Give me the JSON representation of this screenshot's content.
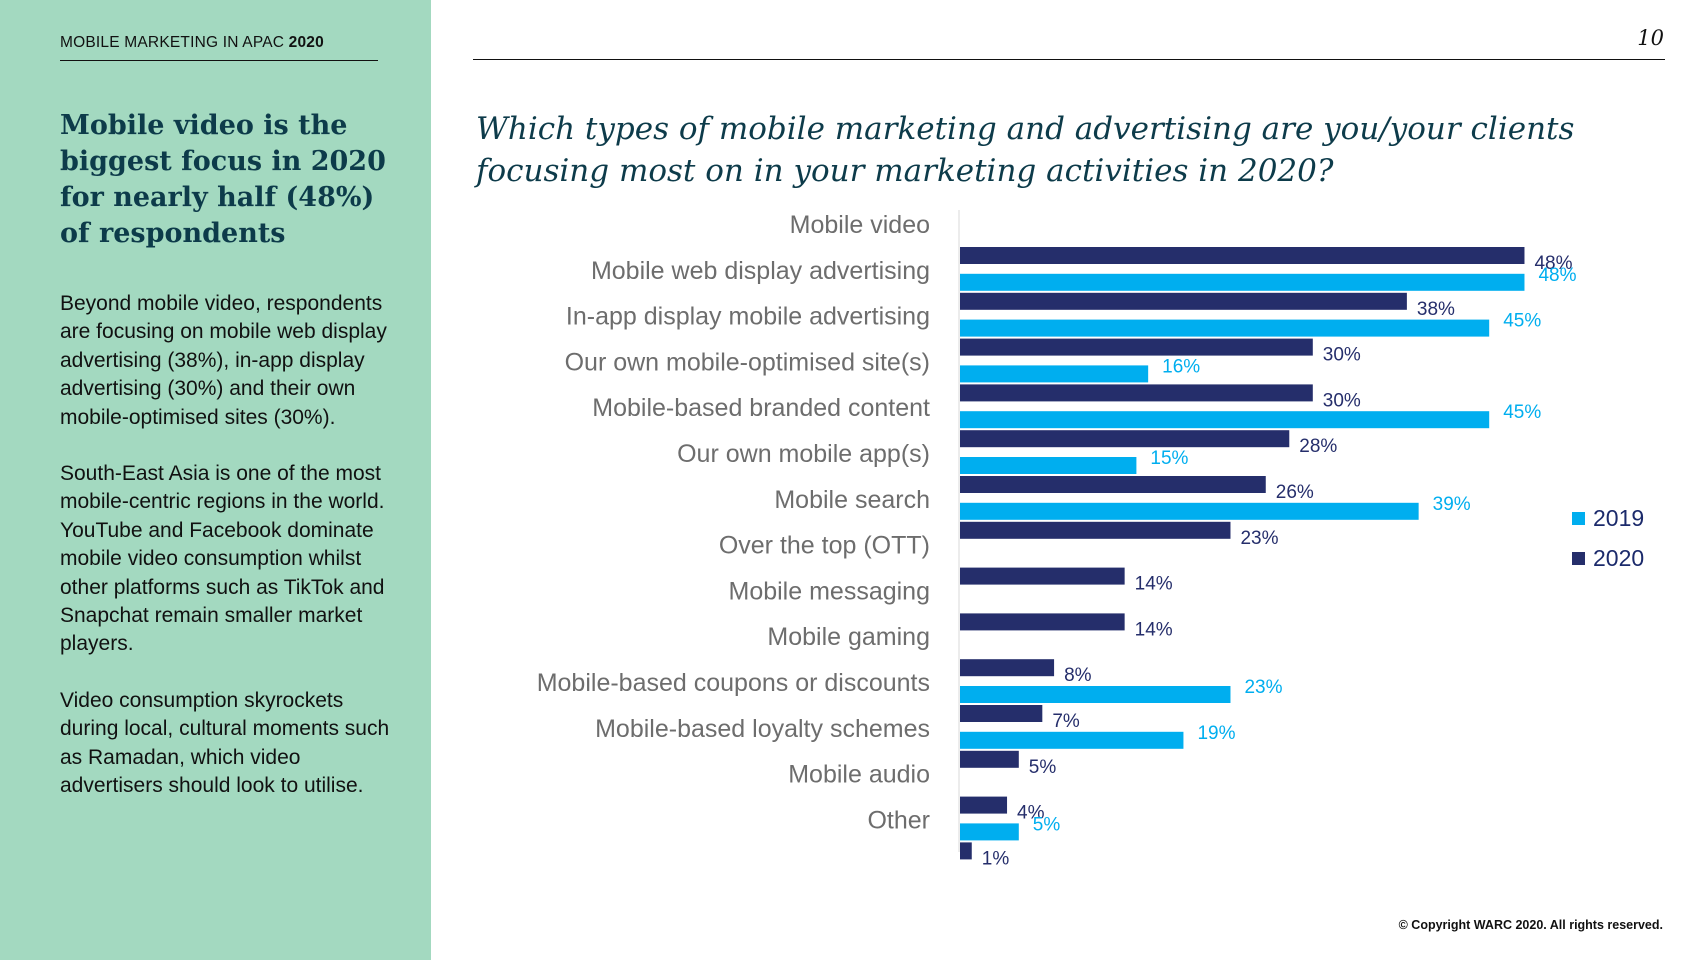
{
  "header": {
    "doc_title": "MOBILE MARKETING IN APAC",
    "doc_year": "2020",
    "page_number": "10"
  },
  "sidebar": {
    "heading": "Mobile video is the biggest focus in 2020 for nearly half (48%) of respondents",
    "paragraphs": [
      "Beyond mobile video, respondents are focusing on mobile web display advertising (38%), in-app display advertising (30%) and their own mobile-optimised sites (30%).",
      "South-East Asia is one of the most mobile-centric regions in the world. YouTube and Facebook dominate mobile video consumption whilst other platforms such as TikTok and Snapchat remain smaller market players.",
      "Video consumption skyrockets during local, cultural moments such as Ramadan, which video advertisers should look to utilise."
    ]
  },
  "footer": {
    "copyright": "© Copyright WARC 2020. All rights reserved."
  },
  "colors": {
    "sidebar_bg": "#a3d9c0",
    "heading": "#0d3b4a",
    "series_2019": "#00aeef",
    "series_2020": "#252e6b"
  },
  "chart_data": {
    "type": "bar",
    "orientation": "horizontal",
    "title": "Which types of mobile marketing and advertising are you/your clients focusing most on in your marketing activities in 2020?",
    "categories": [
      "Mobile video",
      "Mobile web display advertising",
      "In-app display mobile advertising",
      "Our own mobile-optimised site(s)",
      "Mobile-based branded content",
      "Our own mobile app(s)",
      "Mobile search",
      "Over the top (OTT)",
      "Mobile messaging",
      "Mobile gaming",
      "Mobile-based coupons or discounts",
      "Mobile-based loyalty schemes",
      "Mobile audio",
      "Other"
    ],
    "series": [
      {
        "name": "2019",
        "color": "#00aeef",
        "values": [
          null,
          48,
          45,
          16,
          45,
          15,
          39,
          null,
          null,
          null,
          23,
          19,
          null,
          5
        ]
      },
      {
        "name": "2020",
        "color": "#252e6b",
        "values": [
          48,
          38,
          30,
          30,
          28,
          26,
          23,
          14,
          14,
          8,
          7,
          5,
          4,
          1
        ]
      }
    ],
    "value_suffix": "%",
    "xlim": [
      0,
      48
    ],
    "grid": false,
    "legend_position": "right"
  }
}
